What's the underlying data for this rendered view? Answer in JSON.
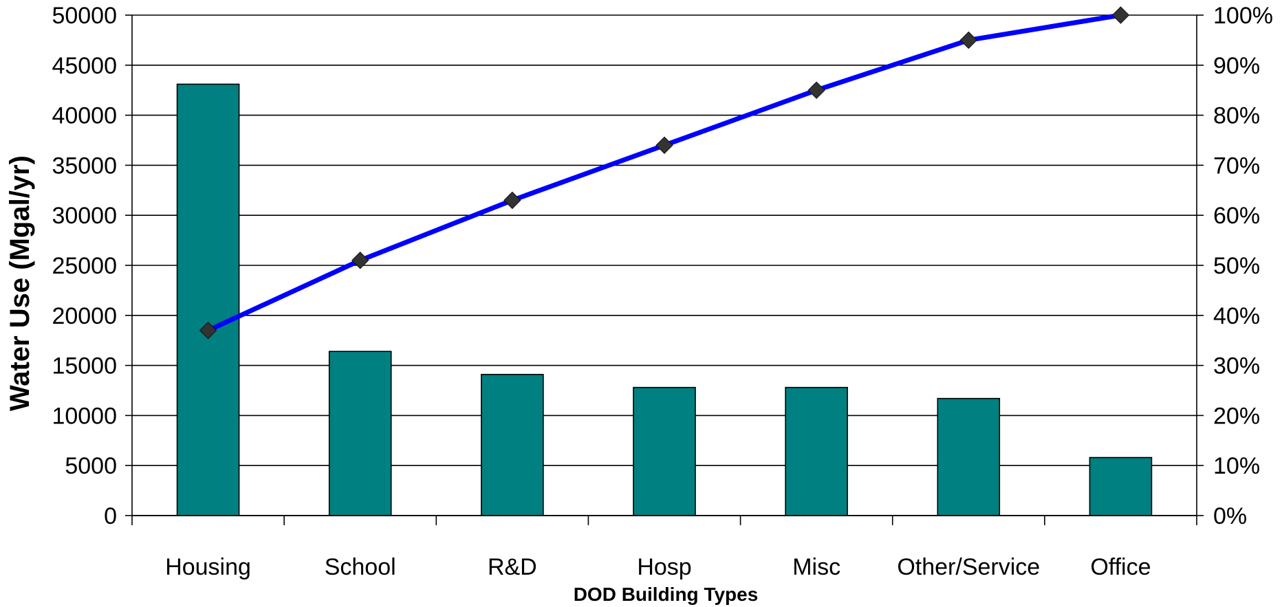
{
  "chart_data": {
    "type": "bar",
    "categories": [
      "Housing",
      "School",
      "R&D",
      "Hosp",
      "Misc",
      "Other/Service",
      "Office"
    ],
    "series": [
      {
        "values": [
          43100,
          16400,
          14100,
          12800,
          12800,
          11700,
          5800
        ],
        "axis": "left",
        "render": "bar",
        "color": "#008080"
      },
      {
        "values": [
          37,
          51,
          63,
          74,
          85,
          95,
          100
        ],
        "axis": "right",
        "render": "line",
        "unit": "%",
        "color": "#0000ff",
        "marker_color": "#333333"
      }
    ],
    "xlabel": "DOD Building Types",
    "ylabel": "Water Use (Mgal/yr)",
    "ylim": [
      0,
      50000
    ],
    "y2lim": [
      0,
      100
    ],
    "left_ticks": [
      "0",
      "5000",
      "10000",
      "15000",
      "20000",
      "25000",
      "30000",
      "35000",
      "40000",
      "45000",
      "50000"
    ],
    "right_ticks": [
      "0%",
      "10%",
      "20%",
      "30%",
      "40%",
      "50%",
      "60%",
      "70%",
      "80%",
      "90%",
      "100%"
    ],
    "grid": true,
    "legend": "none"
  }
}
